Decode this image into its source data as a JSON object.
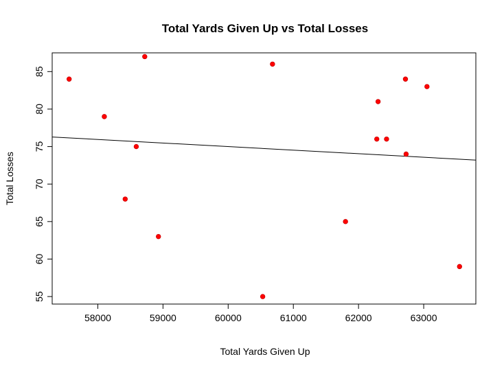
{
  "chart_data": {
    "type": "scatter",
    "title": "Total Yards Given Up vs Total Losses",
    "xlabel": "Total Yards Given Up",
    "ylabel": "Total Losses",
    "xlim": [
      57300,
      63800
    ],
    "ylim": [
      54,
      87.5
    ],
    "x_ticks": [
      58000,
      59000,
      60000,
      61000,
      62000,
      63000
    ],
    "y_ticks": [
      55,
      60,
      65,
      70,
      75,
      80,
      85
    ],
    "grid": false,
    "legend": "none",
    "point_color": "#ff0000",
    "line_color": "#000000",
    "points": [
      {
        "x": 57560,
        "y": 84
      },
      {
        "x": 58100,
        "y": 79
      },
      {
        "x": 58420,
        "y": 68
      },
      {
        "x": 58590,
        "y": 75
      },
      {
        "x": 58720,
        "y": 87
      },
      {
        "x": 58930,
        "y": 63
      },
      {
        "x": 60530,
        "y": 55
      },
      {
        "x": 60680,
        "y": 86
      },
      {
        "x": 61800,
        "y": 65
      },
      {
        "x": 62280,
        "y": 76
      },
      {
        "x": 62300,
        "y": 81
      },
      {
        "x": 62430,
        "y": 76
      },
      {
        "x": 62720,
        "y": 84
      },
      {
        "x": 62730,
        "y": 74
      },
      {
        "x": 63050,
        "y": 83
      },
      {
        "x": 63550,
        "y": 59
      }
    ],
    "trendline": {
      "x": [
        57300,
        63800
      ],
      "y": [
        76.28,
        73.2
      ]
    }
  }
}
